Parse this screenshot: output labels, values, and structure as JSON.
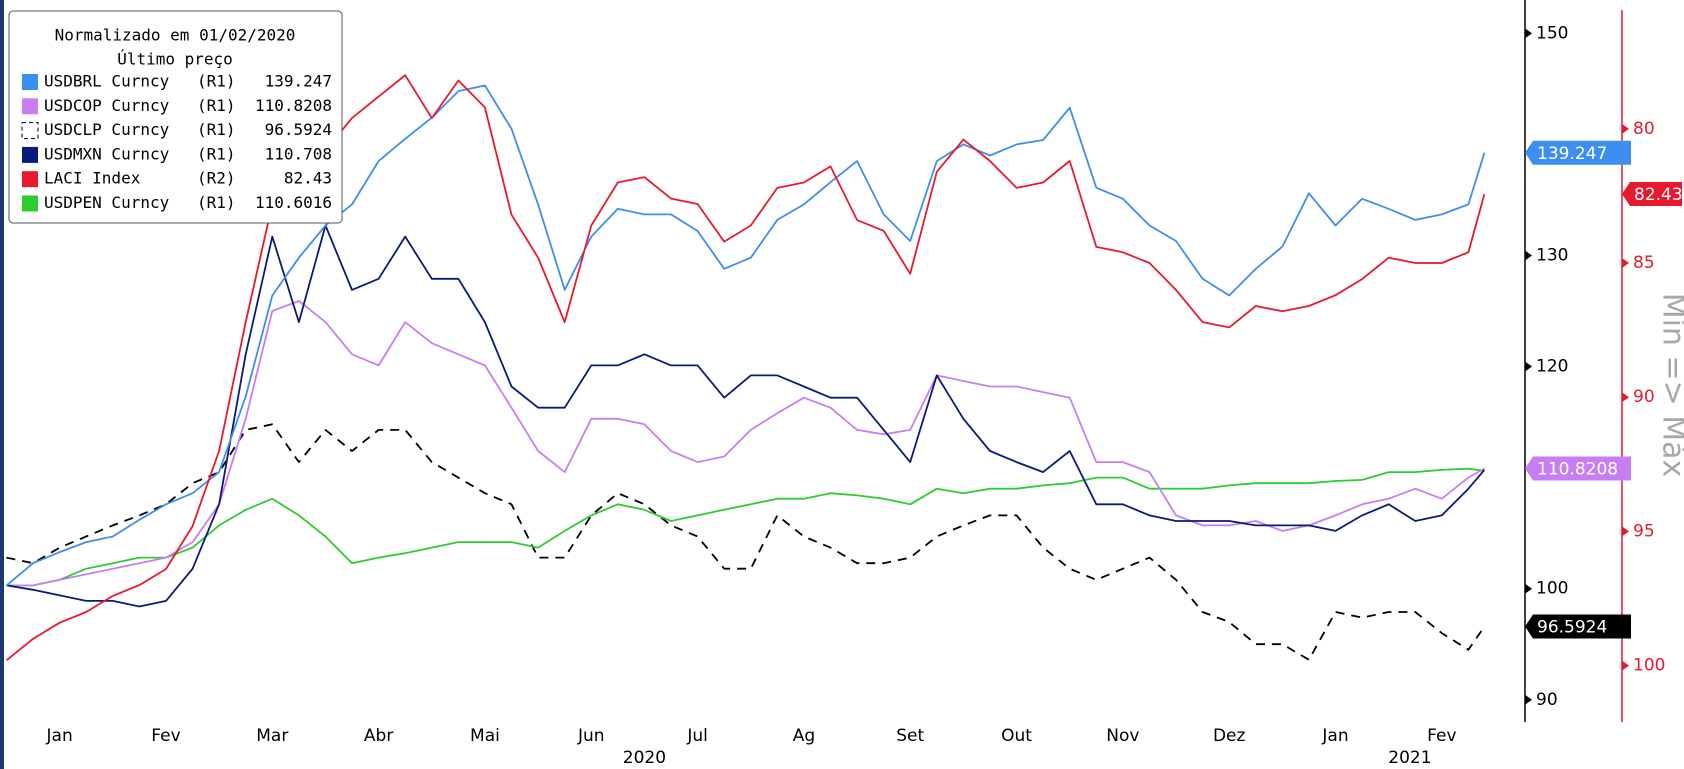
{
  "chart_data": {
    "type": "line",
    "legend_title": [
      "Normalizado em 01/02/2020",
      "Último preço"
    ],
    "x": [
      0,
      0.25,
      0.5,
      0.75,
      1,
      1.25,
      1.5,
      1.75,
      2,
      2.25,
      2.5,
      2.75,
      3,
      3.25,
      3.5,
      3.75,
      4,
      4.25,
      4.5,
      4.75,
      5,
      5.25,
      5.5,
      5.75,
      6,
      6.25,
      6.5,
      6.75,
      7,
      7.25,
      7.5,
      7.75,
      8,
      8.25,
      8.5,
      8.75,
      9,
      9.25,
      9.5,
      9.75,
      10,
      10.25,
      10.5,
      10.75,
      11,
      11.25,
      11.5,
      11.75,
      12,
      12.25,
      12.5,
      12.75,
      13,
      13.25,
      13.5,
      13.75,
      13.9
    ],
    "xlim": [
      0,
      14
    ],
    "xticks": [
      {
        "value": 0.5,
        "label": "Jan"
      },
      {
        "value": 1.5,
        "label": "Fev"
      },
      {
        "value": 2.5,
        "label": "Mar"
      },
      {
        "value": 3.5,
        "label": "Abr"
      },
      {
        "value": 4.5,
        "label": "Mai"
      },
      {
        "value": 5.5,
        "label": "Jun"
      },
      {
        "value": 6.5,
        "label": "Jul"
      },
      {
        "value": 7.5,
        "label": "Ag"
      },
      {
        "value": 8.5,
        "label": "Set"
      },
      {
        "value": 9.5,
        "label": "Out"
      },
      {
        "value": 10.5,
        "label": "Nov"
      },
      {
        "value": 11.5,
        "label": "Dez"
      },
      {
        "value": 12.5,
        "label": "Jan"
      },
      {
        "value": 13.5,
        "label": "Fev"
      }
    ],
    "x_group_labels": [
      {
        "value": 6,
        "label": "2020"
      },
      {
        "value": 13.2,
        "label": "2021"
      }
    ],
    "ylim": [
      88,
      153
    ],
    "yticks": [
      90,
      100,
      120,
      130,
      150
    ],
    "y2lim": [
      102.1,
      75.2
    ],
    "y2ticks": [
      80,
      85,
      90,
      95,
      100
    ],
    "y2_label": "Mín => Máx",
    "series": [
      {
        "name": "USDBRL Curncy",
        "axis_label": "(R1)",
        "color": "#3d8ef0",
        "value_tag": true,
        "values": [
          100.3,
          102.3,
          103.3,
          104.2,
          104.7,
          106.2,
          107.6,
          108.6,
          110.5,
          117.3,
          126.4,
          129.8,
          132.7,
          134.6,
          138.5,
          140.5,
          142.4,
          144.8,
          145.3,
          141.4,
          134.6,
          126.9,
          131.7,
          134.2,
          133.7,
          133.7,
          132.2,
          128.8,
          129.8,
          133.2,
          134.6,
          136.6,
          138.5,
          133.7,
          131.3,
          138.5,
          140.0,
          139.0,
          140.0,
          140.4,
          143.3,
          136.1,
          135.1,
          132.7,
          131.3,
          127.9,
          126.4,
          128.8,
          130.8,
          135.6,
          132.7,
          135.1,
          134.2,
          133.2,
          133.7,
          134.6,
          139.247
        ]
      },
      {
        "name": "USDCOP Curncy",
        "axis_label": "(R1)",
        "color": "#c77ef5",
        "value_tag": true,
        "values": [
          100.3,
          100.3,
          100.8,
          101.3,
          101.8,
          102.3,
          102.8,
          104.2,
          107.6,
          115.3,
          125.0,
          125.9,
          124.0,
          121.1,
          120.1,
          124.0,
          122.1,
          121.1,
          120.1,
          116.3,
          112.4,
          110.5,
          115.3,
          115.3,
          114.8,
          112.4,
          111.4,
          111.9,
          114.3,
          115.8,
          117.2,
          116.3,
          114.3,
          113.9,
          114.3,
          119.2,
          118.7,
          118.2,
          118.2,
          117.7,
          117.2,
          111.4,
          111.4,
          110.5,
          106.6,
          105.7,
          105.7,
          106.1,
          105.2,
          105.7,
          106.6,
          107.6,
          108.1,
          109.0,
          108.1,
          110.0,
          110.8208
        ]
      },
      {
        "name": "USDCLP Curncy",
        "axis_label": "(R1)",
        "color": "#000000",
        "dashed": true,
        "value_tag": true,
        "values": [
          102.8,
          102.3,
          103.7,
          104.7,
          105.7,
          106.6,
          107.6,
          109.5,
          110.5,
          114.3,
          114.8,
          111.4,
          114.3,
          112.4,
          114.3,
          114.3,
          111.4,
          110.0,
          108.6,
          107.6,
          102.8,
          102.8,
          106.6,
          108.6,
          107.6,
          105.7,
          104.7,
          101.8,
          101.8,
          106.6,
          104.7,
          103.7,
          102.3,
          102.3,
          102.8,
          104.7,
          105.7,
          106.6,
          106.6,
          103.7,
          101.8,
          100.8,
          101.8,
          102.8,
          100.8,
          97.9,
          97.0,
          95.0,
          95.0,
          93.6,
          97.9,
          97.4,
          97.9,
          97.9,
          96.0,
          94.5,
          96.5924
        ]
      },
      {
        "name": "USDMXN Curncy",
        "axis_label": "(R1)",
        "color": "#0a1a7a",
        "values": [
          100.3,
          99.9,
          99.4,
          98.9,
          98.9,
          98.4,
          98.9,
          101.8,
          107.6,
          121.1,
          131.7,
          124.0,
          132.7,
          126.9,
          127.9,
          131.7,
          127.9,
          127.9,
          124.0,
          118.2,
          116.3,
          116.3,
          120.1,
          120.1,
          121.1,
          120.1,
          120.1,
          117.2,
          119.2,
          119.2,
          118.2,
          117.2,
          117.2,
          114.3,
          111.4,
          119.2,
          115.3,
          112.4,
          111.4,
          110.5,
          112.4,
          107.6,
          107.6,
          106.6,
          106.1,
          106.1,
          106.1,
          105.7,
          105.7,
          105.7,
          105.2,
          106.6,
          107.6,
          106.1,
          106.6,
          109.0,
          110.708
        ]
      },
      {
        "name": "LACI Index",
        "axis_label": "(R2)",
        "axis": "y2",
        "color": "#e8192c",
        "value_tag": true,
        "values": [
          99.8,
          99.0,
          98.4,
          98.0,
          97.4,
          97.0,
          96.4,
          94.8,
          92.0,
          87.2,
          82.8,
          82.0,
          80.8,
          79.6,
          78.8,
          78.0,
          79.6,
          78.2,
          79.2,
          83.2,
          84.8,
          87.2,
          83.6,
          82.0,
          81.8,
          82.6,
          82.8,
          84.2,
          83.6,
          82.2,
          82.0,
          81.4,
          83.4,
          83.8,
          85.4,
          81.6,
          80.4,
          81.2,
          82.2,
          82.0,
          81.2,
          84.4,
          84.6,
          85.0,
          86.0,
          87.2,
          87.4,
          86.6,
          86.8,
          86.6,
          86.2,
          85.6,
          84.8,
          85.0,
          85.0,
          84.6,
          82.43
        ]
      },
      {
        "name": "USDPEN Curncy",
        "axis_label": "(R1)",
        "color": "#2ecc2e",
        "values": [
          100.3,
          100.3,
          100.8,
          101.8,
          102.3,
          102.8,
          102.8,
          103.7,
          105.7,
          107.1,
          108.1,
          106.6,
          104.7,
          102.3,
          102.8,
          103.2,
          103.7,
          104.2,
          104.2,
          104.2,
          103.7,
          105.2,
          106.6,
          107.6,
          107.1,
          106.1,
          106.6,
          107.1,
          107.6,
          108.1,
          108.1,
          108.6,
          108.4,
          108.1,
          107.6,
          109.0,
          108.6,
          109.0,
          109.0,
          109.3,
          109.5,
          110.0,
          110.0,
          109.0,
          109.0,
          109.0,
          109.3,
          109.5,
          109.5,
          109.5,
          109.7,
          109.8,
          110.5,
          110.5,
          110.7,
          110.8,
          110.6016
        ]
      }
    ]
  }
}
